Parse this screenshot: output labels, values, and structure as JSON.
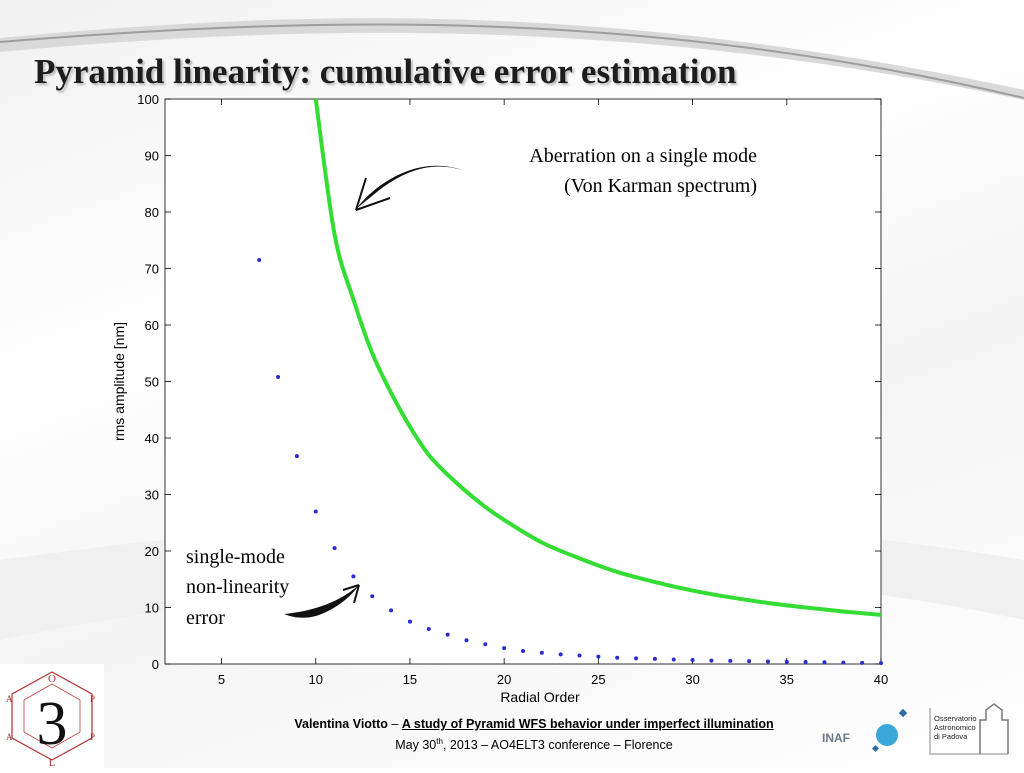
{
  "title": "Pyramid linearity: cumulative error estimation",
  "annotations": {
    "aberration_line1": "Aberration on a single mode",
    "aberration_line2": "(Von Karman spectrum)",
    "nonlin_line1": "single-mode",
    "nonlin_line2": "non-linearity",
    "nonlin_line3": "error"
  },
  "footer": {
    "author": "Valentina Viotto",
    "dash": "–",
    "talk_title": "A study of Pyramid WFS behavior under imperfect illumination",
    "date_prefix": "May 30",
    "date_sup": "th",
    "date_suffix": ", 2013 – AO4ELT3 conference – Florence"
  },
  "logos": {
    "inaf": "INAF",
    "observatory": [
      "Osservatorio",
      "Astronomico",
      "di Padova"
    ],
    "left_logo_glyph": "3",
    "left_logo_letters": [
      "O",
      "L",
      "A",
      "P",
      "A",
      "P"
    ]
  },
  "colors": {
    "curve": "#33dd33",
    "points": "#2b2bd0",
    "axis": "#000000",
    "title_shadow": "#b8b8b8",
    "inaf_blue": "#3ba7d9"
  },
  "chart_data": {
    "type": "line",
    "xlabel": "Radial Order",
    "ylabel": "rms amplitude [nm]",
    "xlim": [
      2,
      40
    ],
    "ylim": [
      0,
      100
    ],
    "xticks": [
      5,
      10,
      15,
      20,
      25,
      30,
      35,
      40
    ],
    "yticks": [
      0,
      10,
      20,
      30,
      40,
      50,
      60,
      70,
      80,
      90,
      100
    ],
    "grid": false,
    "series": [
      {
        "kind": "line",
        "x": [
          10,
          11,
          12,
          13,
          14,
          15,
          16,
          17,
          18,
          19,
          20,
          22,
          24,
          26,
          28,
          30,
          32,
          34,
          36,
          38,
          40
        ],
        "values": [
          100,
          76,
          64.5,
          55,
          48,
          42,
          37,
          33.5,
          30.5,
          27.8,
          25.5,
          21.5,
          18.7,
          16.3,
          14.5,
          13,
          11.8,
          10.8,
          10,
          9.3,
          8.7
        ]
      },
      {
        "kind": "scatter",
        "x": [
          7,
          8,
          9,
          10,
          11,
          12,
          13,
          14,
          15,
          16,
          17,
          18,
          19,
          20,
          21,
          22,
          23,
          24,
          25,
          26,
          27,
          28,
          29,
          30,
          31,
          32,
          33,
          34,
          35,
          36,
          37,
          38,
          39,
          40
        ],
        "values": [
          71.5,
          50.8,
          36.8,
          27,
          20.5,
          15.5,
          12,
          9.5,
          7.5,
          6.2,
          5.2,
          4.2,
          3.5,
          2.8,
          2.3,
          2.0,
          1.7,
          1.5,
          1.3,
          1.1,
          1.0,
          0.9,
          0.8,
          0.7,
          0.6,
          0.55,
          0.5,
          0.45,
          0.4,
          0.35,
          0.3,
          0.25,
          0.2,
          0.15
        ]
      }
    ]
  }
}
